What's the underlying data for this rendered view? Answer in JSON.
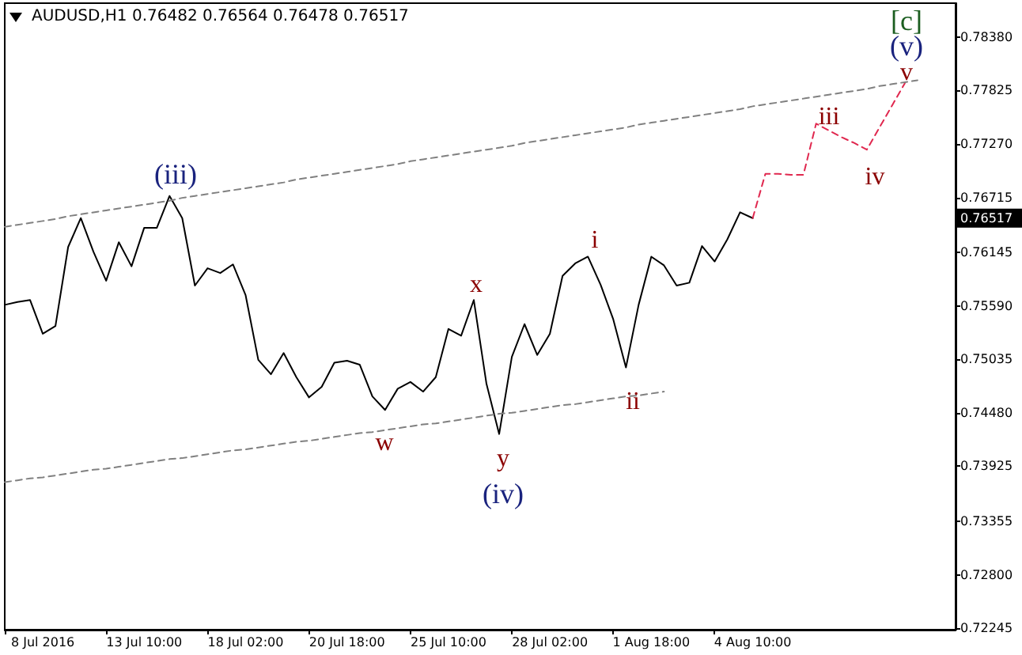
{
  "chart_data": {
    "type": "line",
    "title": "AUDUSD,H1  0.76482 0.76564 0.76478 0.76517",
    "categories": [
      null,
      null,
      null,
      "8 Jul 2016",
      null,
      null,
      null,
      null,
      null,
      null,
      null,
      "13 Jul 10:00",
      null,
      null,
      null,
      null,
      null,
      null,
      null,
      "18 Jul 02:00",
      null,
      null,
      null,
      null,
      null,
      null,
      null,
      "20 Jul 18:00",
      null,
      null,
      null,
      null,
      null,
      null,
      null,
      "25 Jul 10:00",
      null,
      null,
      null,
      null,
      null,
      null,
      null,
      "28 Jul 02:00",
      null,
      null,
      null,
      null,
      null,
      null,
      null,
      "1 Aug 18:00",
      null,
      null,
      null,
      null,
      null,
      null,
      null,
      "4 Aug 10:00",
      null,
      null,
      null,
      null,
      null,
      null,
      null,
      null,
      null,
      null,
      null,
      null,
      null,
      null,
      null,
      null
    ],
    "ylim": [
      0.7223,
      0.7873
    ],
    "yticks": [
      {
        "value": 0.7838,
        "label": "0.78380"
      },
      {
        "value": 0.77825,
        "label": "0.77825"
      },
      {
        "value": 0.7727,
        "label": "0.77270"
      },
      {
        "value": 0.76715,
        "label": "0.76715"
      },
      {
        "value": 0.76145,
        "label": "0.76145"
      },
      {
        "value": 0.7559,
        "label": "0.75590"
      },
      {
        "value": 0.75035,
        "label": "0.75035"
      },
      {
        "value": 0.7448,
        "label": "0.74480"
      },
      {
        "value": 0.73925,
        "label": "0.73925"
      },
      {
        "value": 0.73355,
        "label": "0.73355"
      },
      {
        "value": 0.728,
        "label": "0.72800"
      },
      {
        "value": 0.72245,
        "label": "0.72245"
      }
    ],
    "grid": false,
    "marker": "none",
    "series": [
      {
        "color": "#000000",
        "line_style": "solid",
        "values": [
          0.756,
          0.7563,
          0.7565,
          0.753,
          0.7538,
          0.762,
          0.765,
          0.7615,
          0.7585,
          0.7625,
          0.76,
          0.764,
          0.764,
          0.7673,
          0.765,
          0.758,
          0.7598,
          0.7593,
          0.7602,
          0.757,
          0.7503,
          0.7488,
          0.751,
          0.7485,
          0.7464,
          0.7475,
          0.75,
          0.7502,
          0.7498,
          0.7465,
          0.7451,
          0.7473,
          0.748,
          0.747,
          0.7485,
          0.7535,
          0.7528,
          0.7565,
          0.7478,
          0.7426,
          0.7506,
          0.754,
          0.7508,
          0.753,
          0.759,
          0.7603,
          0.761,
          0.7581,
          0.7545,
          0.7495,
          0.756,
          0.761,
          0.7601,
          0.758,
          0.7583,
          0.7621,
          0.7605,
          0.7628,
          0.7656,
          0.765,
          null,
          null,
          null,
          null,
          null,
          null,
          null,
          null,
          null,
          null,
          null,
          null,
          null,
          null,
          null,
          null
        ]
      },
      {
        "color": "#e0284f",
        "line_style": "dashed",
        "values": [
          null,
          null,
          null,
          null,
          null,
          null,
          null,
          null,
          null,
          null,
          null,
          null,
          null,
          null,
          null,
          null,
          null,
          null,
          null,
          null,
          null,
          null,
          null,
          null,
          null,
          null,
          null,
          null,
          null,
          null,
          null,
          null,
          null,
          null,
          null,
          null,
          null,
          null,
          null,
          null,
          null,
          null,
          null,
          null,
          null,
          null,
          null,
          null,
          null,
          null,
          null,
          null,
          null,
          null,
          null,
          null,
          null,
          null,
          null,
          0.765,
          0.7696,
          0.7696,
          0.7695,
          0.7695,
          0.7748,
          0.7741,
          0.7734,
          0.7728,
          0.7721,
          0.7744,
          0.7767,
          0.779,
          null,
          null,
          null,
          null
        ]
      },
      {
        "color": "#808080",
        "line_style": "dashed",
        "values": [
          0.7641,
          0.7643,
          0.7645,
          0.7647,
          0.7649,
          0.7652,
          0.7654,
          0.7656,
          0.7658,
          0.766,
          0.7662,
          0.7664,
          0.7666,
          0.7668,
          0.7671,
          0.7673,
          0.7675,
          0.7677,
          0.7679,
          0.7681,
          0.7683,
          0.7685,
          0.7687,
          0.769,
          0.7692,
          0.7694,
          0.7696,
          0.7698,
          0.77,
          0.7702,
          0.7704,
          0.7706,
          0.7709,
          0.7711,
          0.7713,
          0.7715,
          0.7717,
          0.7719,
          0.7721,
          0.7723,
          0.7725,
          0.7728,
          0.773,
          0.7732,
          0.7734,
          0.7736,
          0.7738,
          0.774,
          0.7742,
          0.7744,
          0.7747,
          0.7749,
          0.7751,
          0.7753,
          0.7755,
          0.7757,
          0.7759,
          0.7761,
          0.7763,
          0.7766,
          0.7768,
          0.777,
          0.7772,
          0.7774,
          0.7776,
          0.7778,
          0.778,
          0.7782,
          0.7784,
          0.7787,
          0.7789,
          0.7791,
          0.7793,
          null,
          null,
          null
        ]
      },
      {
        "color": "#808080",
        "line_style": "dashed",
        "values": [
          0.7376,
          0.7378,
          0.738,
          0.7381,
          0.7383,
          0.7385,
          0.7387,
          0.7389,
          0.739,
          0.7392,
          0.7394,
          0.7396,
          0.7398,
          0.74,
          0.7401,
          0.7403,
          0.7405,
          0.7407,
          0.7409,
          0.741,
          0.7412,
          0.7414,
          0.7416,
          0.7418,
          0.7419,
          0.7421,
          0.7423,
          0.7425,
          0.7427,
          0.7428,
          0.743,
          0.7432,
          0.7434,
          0.7436,
          0.7437,
          0.7439,
          0.7441,
          0.7443,
          0.7445,
          0.7447,
          0.7448,
          0.745,
          0.7452,
          0.7454,
          0.7456,
          0.7457,
          0.7459,
          0.7461,
          0.7463,
          0.7465,
          0.7466,
          0.7468,
          0.747,
          null,
          null,
          null,
          null,
          null,
          null,
          null,
          null,
          null,
          null,
          null,
          null,
          null,
          null,
          null,
          null,
          null,
          null,
          null,
          null,
          null,
          null,
          null
        ]
      }
    ],
    "annotations": [
      "(iii)",
      "w",
      "x",
      "y",
      "(iv)",
      "i",
      "ii",
      "iii",
      "iv",
      "v",
      "(v)",
      "[c]",
      "0.76517"
    ]
  }
}
